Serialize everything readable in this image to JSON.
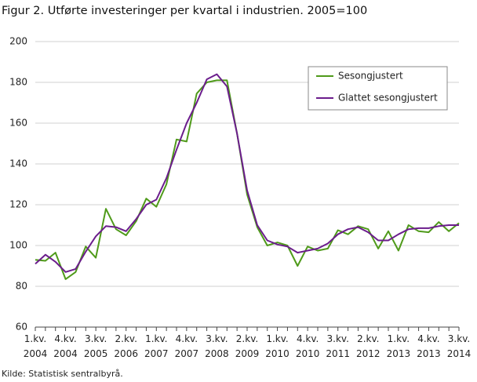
{
  "chart_data": {
    "type": "line",
    "title": "Figur 2. Utførte investeringer per kvartal i industrien. 2005=100",
    "source": "Kilde: Statistisk sentralbyrå.",
    "categories": [
      "1.kv. 2004",
      null,
      null,
      "4.kv. 2004",
      null,
      null,
      "3.kv. 2005",
      null,
      null,
      "2.kv. 2006",
      null,
      null,
      "1.kv. 2007",
      null,
      null,
      "4.kv. 2007",
      null,
      null,
      "3.kv. 2008",
      null,
      null,
      "2.kv. 2009",
      null,
      null,
      "1.kv. 2010",
      null,
      null,
      "4.kv. 2010",
      null,
      null,
      "3.kv. 2011",
      null,
      null,
      "2.kv. 2012",
      null,
      null,
      "1.kv. 2013",
      null,
      null,
      "4.kv. 2013",
      null,
      null,
      "3.kv. 2014"
    ],
    "series": [
      {
        "name": "Sesongjustert",
        "color": "#4f9a1a",
        "values": [
          93,
          92.5,
          96.5,
          83.5,
          87,
          99.5,
          94,
          118,
          108,
          105,
          112,
          123,
          119,
          130,
          152,
          151,
          174.5,
          180,
          181,
          181,
          155,
          125,
          109,
          100,
          101.5,
          100,
          90,
          99.5,
          97.5,
          98.5,
          107.5,
          105.5,
          109.5,
          108,
          98.5,
          107,
          97.5,
          110,
          107,
          106.5,
          111.5,
          107,
          111
        ]
      },
      {
        "name": "Glattet sesongjustert",
        "color": "#6b1d8c",
        "values": [
          91,
          95.5,
          92,
          87,
          88.5,
          97,
          104.5,
          109.5,
          109,
          107,
          113,
          120,
          122.5,
          133,
          147,
          160,
          170,
          181.5,
          184,
          178,
          155,
          127,
          110,
          102.5,
          100.5,
          99.5,
          96.5,
          97.5,
          98.5,
          101,
          105.5,
          108,
          109,
          106.5,
          102.5,
          102.5,
          105.5,
          108,
          108.5,
          108.5,
          109.5,
          110,
          110
        ]
      }
    ],
    "ylim": [
      60,
      200
    ],
    "yticks": [
      60,
      80,
      100,
      120,
      140,
      160,
      180,
      200
    ],
    "grid": true,
    "legend": "top-right"
  }
}
